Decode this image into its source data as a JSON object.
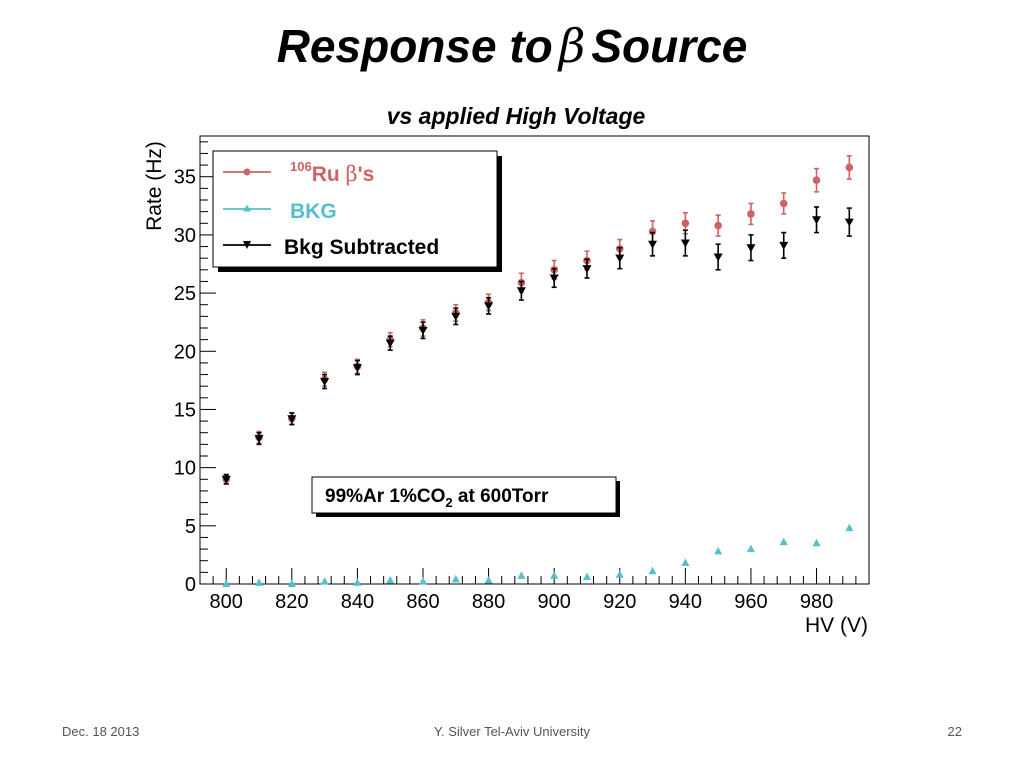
{
  "slide": {
    "title_prefix": "Response to",
    "title_symbol": "β",
    "title_suffix": "Source",
    "footer_date": "Dec. 18 2013",
    "footer_author": "Y. Silver Tel-Aviv University",
    "page_number": "22"
  },
  "chart_data": {
    "type": "scatter",
    "title": "vs applied High Voltage",
    "xlabel": "HV (V)",
    "ylabel": "Rate (Hz)",
    "xlim": [
      792,
      996
    ],
    "ylim": [
      0,
      38.5
    ],
    "xticks": [
      800,
      820,
      840,
      860,
      880,
      900,
      920,
      940,
      960,
      980
    ],
    "yticks": [
      0,
      5,
      10,
      15,
      20,
      25,
      30,
      35
    ],
    "grid": false,
    "legend_position": "top-left",
    "annotation": {
      "text": "99%Ar 1%CO",
      "subscript": "2",
      "suffix": " at 600Torr"
    },
    "series": [
      {
        "name_sup": "106",
        "name_main": "Ru ",
        "name_symbol": "β",
        "name_tail": "'s",
        "color": "#cd6363",
        "marker": "circle",
        "x": [
          800,
          810,
          820,
          830,
          840,
          850,
          860,
          870,
          880,
          890,
          900,
          910,
          920,
          930,
          940,
          950,
          960,
          970,
          980,
          990
        ],
        "y": [
          9.0,
          12.6,
          14.2,
          17.6,
          18.7,
          21.0,
          22.0,
          23.3,
          24.2,
          25.9,
          27.0,
          27.8,
          28.8,
          30.3,
          31.0,
          30.8,
          31.8,
          32.7,
          34.7,
          35.8
        ],
        "err": [
          0.4,
          0.5,
          0.5,
          0.6,
          0.6,
          0.6,
          0.7,
          0.7,
          0.7,
          0.8,
          0.8,
          0.8,
          0.8,
          0.9,
          0.9,
          0.9,
          0.9,
          0.9,
          1.0,
          1.0
        ]
      },
      {
        "name": "BKG",
        "color": "#55bfcb",
        "marker": "triangle-up",
        "x": [
          800,
          810,
          820,
          830,
          840,
          850,
          860,
          870,
          880,
          890,
          900,
          910,
          920,
          930,
          940,
          950,
          960,
          970,
          980,
          990
        ],
        "y": [
          0.0,
          0.1,
          0.0,
          0.2,
          0.1,
          0.3,
          0.2,
          0.4,
          0.3,
          0.7,
          0.7,
          0.6,
          0.8,
          1.1,
          1.8,
          2.8,
          3.0,
          3.6,
          3.5,
          4.8
        ],
        "err": [
          0,
          0,
          0,
          0,
          0,
          0,
          0,
          0,
          0,
          0,
          0,
          0,
          0,
          0,
          0,
          0,
          0,
          0,
          0,
          0
        ]
      },
      {
        "name": "Bkg Subtracted",
        "color": "#000000",
        "marker": "triangle-down",
        "x": [
          800,
          810,
          820,
          830,
          840,
          850,
          860,
          870,
          880,
          890,
          900,
          910,
          920,
          930,
          940,
          950,
          960,
          970,
          980,
          990
        ],
        "y": [
          9.0,
          12.5,
          14.2,
          17.4,
          18.6,
          20.7,
          21.8,
          23.0,
          23.9,
          25.2,
          26.3,
          27.1,
          28.0,
          29.2,
          29.3,
          28.1,
          28.9,
          29.1,
          31.3,
          31.1
        ],
        "err": [
          0.4,
          0.5,
          0.5,
          0.6,
          0.6,
          0.6,
          0.7,
          0.7,
          0.7,
          0.8,
          0.8,
          0.8,
          0.9,
          1.0,
          1.1,
          1.1,
          1.1,
          1.1,
          1.1,
          1.2
        ]
      }
    ]
  }
}
